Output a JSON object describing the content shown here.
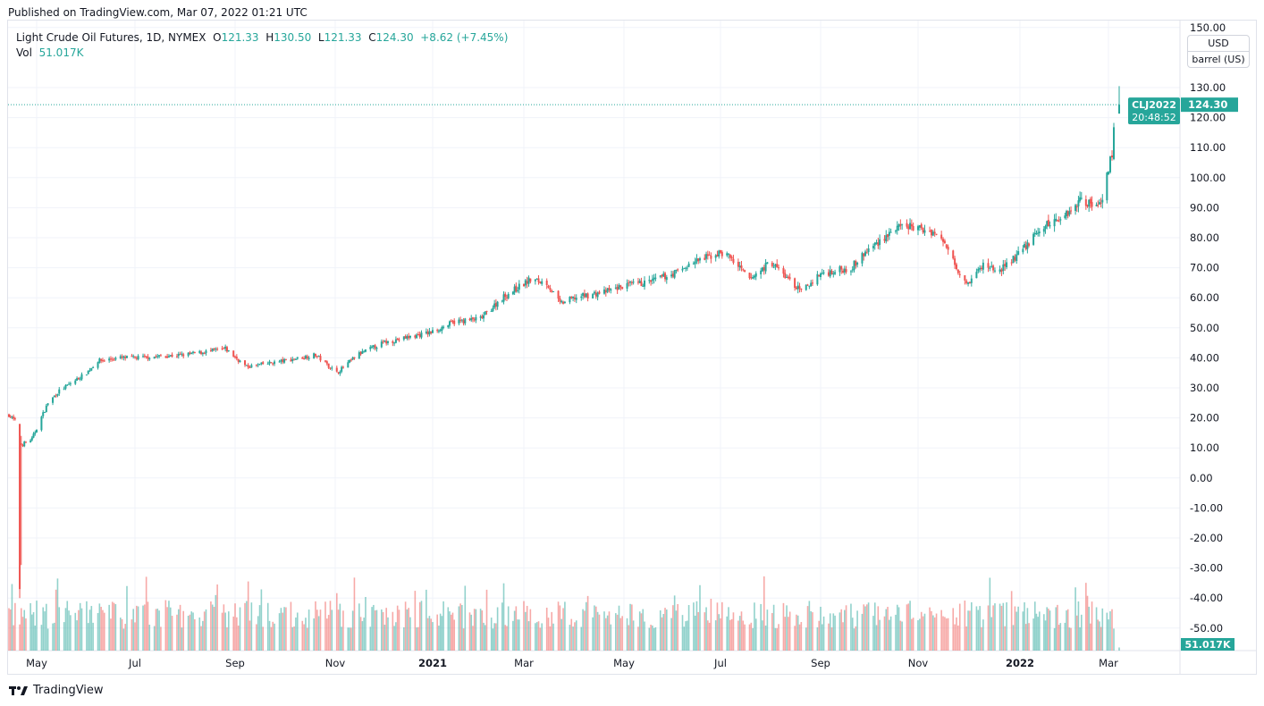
{
  "published": "Published on TradingView.com, Mar 07, 2022 01:21 UTC",
  "legend": {
    "symbol": "Light Crude Oil Futures, 1D, NYMEX",
    "open_label": "O",
    "open": "121.33",
    "high_label": "H",
    "high": "130.50",
    "low_label": "L",
    "low": "121.33",
    "close_label": "C",
    "close": "124.30",
    "change": "+8.62 (+7.45%)",
    "vol_label": "Vol",
    "vol": "51.017K"
  },
  "currency": "USD",
  "unit": "barrel (US)",
  "price_tag": {
    "ticker": "CLJ2022",
    "price": "124.30",
    "countdown": "20:48:52"
  },
  "volume_tag": "51.017K",
  "footer": "TradingView",
  "colors": {
    "up": "#26a69a",
    "down": "#ef5350"
  },
  "chart_data": {
    "type": "candlestick",
    "title": "Light Crude Oil Futures, 1D, NYMEX",
    "ylim": [
      -55,
      150
    ],
    "y_ticks": [
      "150.00",
      "130.00",
      "120.00",
      "110.00",
      "100.00",
      "90.00",
      "80.00",
      "70.00",
      "60.00",
      "50.00",
      "40.00",
      "30.00",
      "20.00",
      "10.00",
      "0.00",
      "-10.00",
      "-20.00",
      "-30.00",
      "-40.00",
      "-50.00"
    ],
    "x_ticks": [
      {
        "label": "May",
        "date": "2020-05-01"
      },
      {
        "label": "Jul",
        "date": "2020-07-01"
      },
      {
        "label": "Sep",
        "date": "2020-09-01"
      },
      {
        "label": "Nov",
        "date": "2020-11-01"
      },
      {
        "label": "2021",
        "date": "2021-01-01",
        "bold": true
      },
      {
        "label": "Mar",
        "date": "2021-03-01"
      },
      {
        "label": "May",
        "date": "2021-05-01"
      },
      {
        "label": "Jul",
        "date": "2021-07-01"
      },
      {
        "label": "Sep",
        "date": "2021-09-01"
      },
      {
        "label": "Nov",
        "date": "2021-11-01"
      },
      {
        "label": "2022",
        "date": "2022-01-01",
        "bold": true
      },
      {
        "label": "Mar",
        "date": "2022-03-01"
      }
    ],
    "grid": true,
    "approx_closes": [
      [
        "2020-04-13",
        21
      ],
      [
        "2020-04-17",
        19
      ],
      [
        "2020-04-20",
        -37
      ],
      [
        "2020-04-21",
        11
      ],
      [
        "2020-04-28",
        13
      ],
      [
        "2020-05-08",
        25
      ],
      [
        "2020-05-15",
        29
      ],
      [
        "2020-06-01",
        35
      ],
      [
        "2020-06-08",
        39
      ],
      [
        "2020-06-22",
        40
      ],
      [
        "2020-07-01",
        40
      ],
      [
        "2020-08-01",
        41
      ],
      [
        "2020-08-26",
        43
      ],
      [
        "2020-09-08",
        37
      ],
      [
        "2020-10-01",
        39
      ],
      [
        "2020-10-20",
        41
      ],
      [
        "2020-11-02",
        35
      ],
      [
        "2020-11-15",
        41
      ],
      [
        "2020-12-01",
        45
      ],
      [
        "2020-12-31",
        48.5
      ],
      [
        "2021-01-15",
        52
      ],
      [
        "2021-02-01",
        53
      ],
      [
        "2021-02-15",
        60
      ],
      [
        "2021-03-05",
        66
      ],
      [
        "2021-03-15",
        65
      ],
      [
        "2021-03-23",
        58
      ],
      [
        "2021-04-01",
        60
      ],
      [
        "2021-04-20",
        62
      ],
      [
        "2021-05-01",
        64
      ],
      [
        "2021-05-15",
        65
      ],
      [
        "2021-06-01",
        68
      ],
      [
        "2021-06-15",
        72
      ],
      [
        "2021-07-01",
        75
      ],
      [
        "2021-07-06",
        74
      ],
      [
        "2021-07-19",
        66
      ],
      [
        "2021-08-01",
        72
      ],
      [
        "2021-08-20",
        62
      ],
      [
        "2021-09-01",
        68
      ],
      [
        "2021-09-20",
        70
      ],
      [
        "2021-10-01",
        76
      ],
      [
        "2021-10-15",
        82
      ],
      [
        "2021-10-25",
        84
      ],
      [
        "2021-11-01",
        83
      ],
      [
        "2021-11-10",
        82
      ],
      [
        "2021-11-20",
        76
      ],
      [
        "2021-11-26",
        68
      ],
      [
        "2021-12-01",
        65
      ],
      [
        "2021-12-10",
        71
      ],
      [
        "2021-12-20",
        69
      ],
      [
        "2022-01-01",
        75
      ],
      [
        "2022-01-15",
        83
      ],
      [
        "2022-02-01",
        88
      ],
      [
        "2022-02-11",
        93
      ],
      [
        "2022-02-18",
        91
      ],
      [
        "2022-02-24",
        92
      ],
      [
        "2022-03-01",
        103
      ],
      [
        "2022-03-03",
        108
      ],
      [
        "2022-03-04",
        116
      ]
    ],
    "last_bar": {
      "date": "2022-03-07",
      "open": 121.33,
      "high": 130.5,
      "low": 121.33,
      "close": 124.3,
      "volume": "51.017K"
    }
  }
}
